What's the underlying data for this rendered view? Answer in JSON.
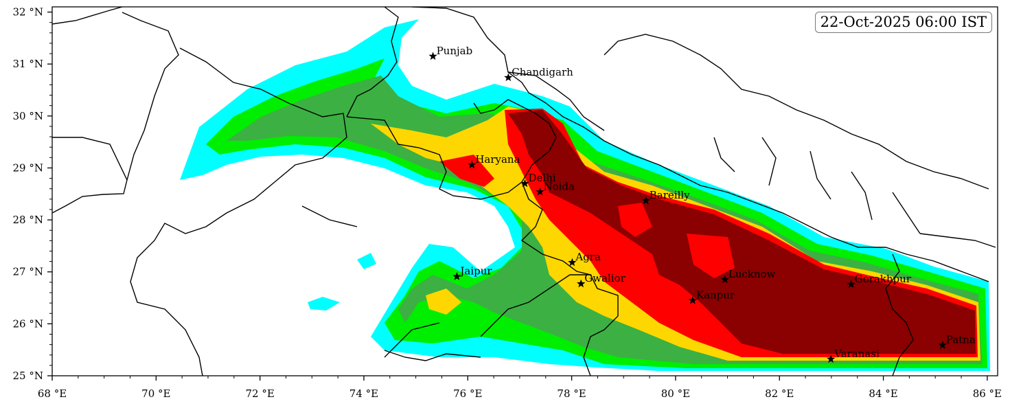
{
  "timestamp": "22-Oct-2025 06:00 IST",
  "axes": {
    "x_ticks": [
      "68 °E",
      "70 °E",
      "72 °E",
      "74 °E",
      "76 °E",
      "78 °E",
      "80 °E",
      "82 °E",
      "84 °E",
      "86 °E"
    ],
    "y_ticks": [
      "32 °N",
      "31 °N",
      "30 °N",
      "29 °N",
      "28 °N",
      "27 °N",
      "26 °N",
      "25 °N"
    ],
    "lon_range": [
      68,
      86.2
    ],
    "lat_range": [
      25,
      32.1
    ]
  },
  "cities": [
    {
      "name": "Punjab",
      "lon": 75.33,
      "lat": 31.15
    },
    {
      "name": "Chandigarh",
      "lon": 76.78,
      "lat": 30.74
    },
    {
      "name": "Haryana",
      "lon": 76.08,
      "lat": 29.06
    },
    {
      "name": "Delhi",
      "lon": 77.1,
      "lat": 28.7
    },
    {
      "name": "Noida",
      "lon": 77.39,
      "lat": 28.54
    },
    {
      "name": "Bareilly",
      "lon": 79.43,
      "lat": 28.37
    },
    {
      "name": "Agra",
      "lon": 78.01,
      "lat": 27.18
    },
    {
      "name": "Jaipur",
      "lon": 75.79,
      "lat": 26.91
    },
    {
      "name": "Gwalior",
      "lon": 78.18,
      "lat": 26.77
    },
    {
      "name": "Lucknow",
      "lon": 80.95,
      "lat": 26.85
    },
    {
      "name": "Kanpur",
      "lon": 80.33,
      "lat": 26.45
    },
    {
      "name": "Gorakhpur",
      "lon": 83.38,
      "lat": 26.76
    },
    {
      "name": "Varanasi",
      "lon": 82.99,
      "lat": 25.32
    },
    {
      "name": "Patna",
      "lon": 85.14,
      "lat": 25.59
    }
  ],
  "colors": {
    "level1": "#00ffff",
    "level2": "#1de3c3",
    "level3": "#00ee00",
    "level4": "#3cb043",
    "level5": "#ffd700",
    "level6": "#ff0000",
    "level7": "#8b0000",
    "border": "#000000"
  }
}
